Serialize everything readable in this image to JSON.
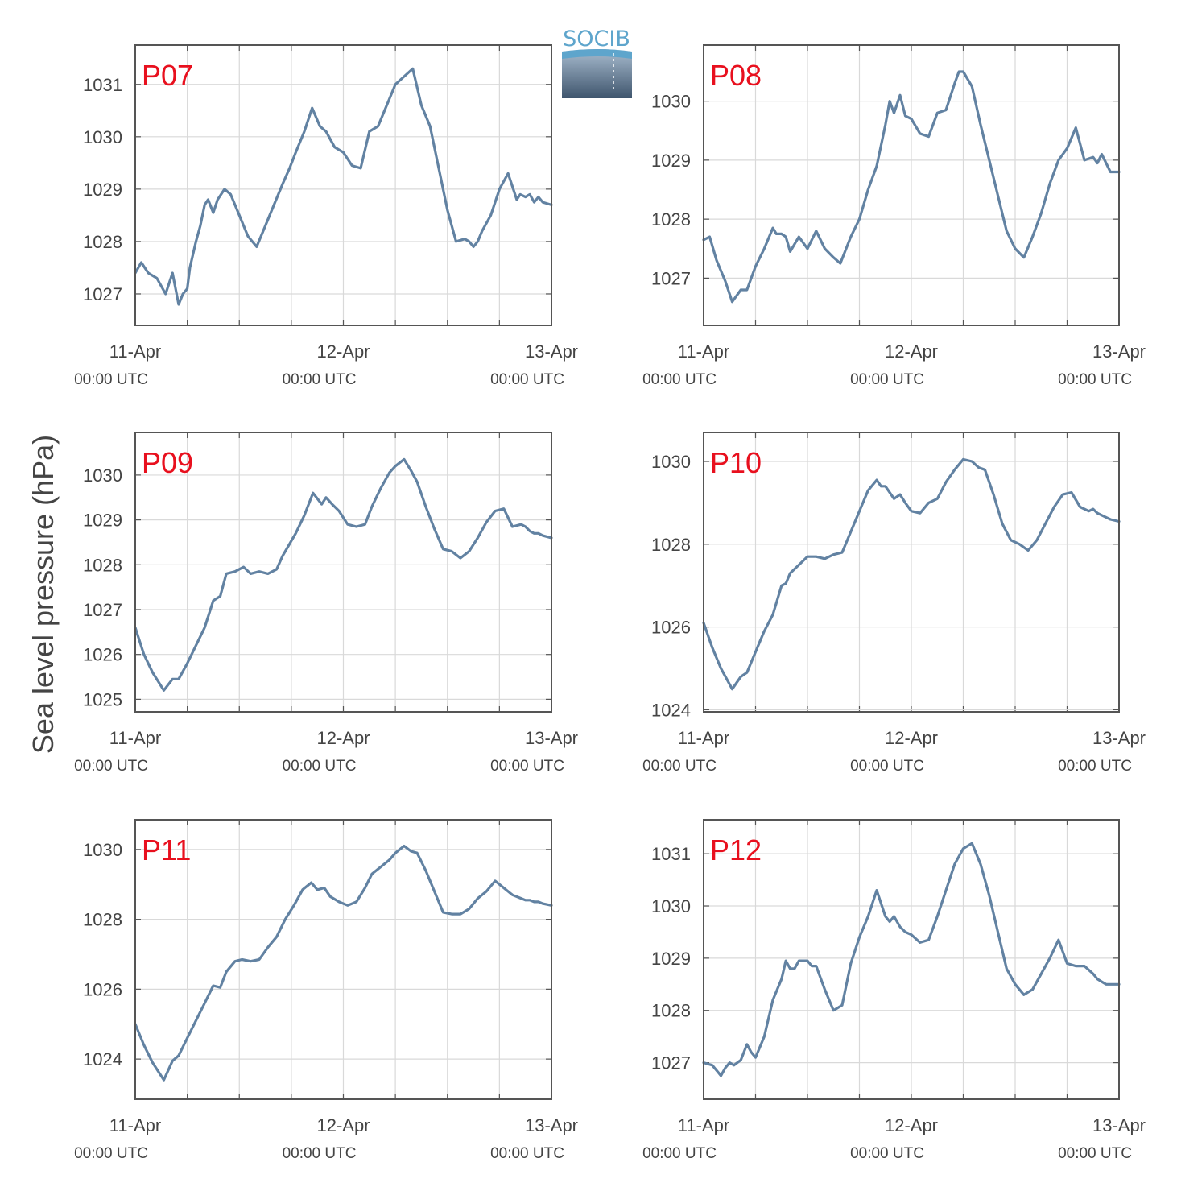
{
  "logo": {
    "text": "SOCIB"
  },
  "ylabel": "Sea level pressure (hPa)",
  "colors": {
    "line": "#6282a2",
    "label": "#e8101e",
    "grid": "#d9d9d9",
    "frame": "#555555",
    "text": "#444444"
  },
  "x_ticks": [
    {
      "x": 0,
      "date": "11-Apr",
      "time": "00:00 UTC"
    },
    {
      "x": 24,
      "date": "12-Apr",
      "time": "00:00 UTC"
    },
    {
      "x": 48,
      "date": "13-Apr",
      "time": "00:00 UTC"
    }
  ],
  "chart_data": [
    {
      "type": "line",
      "label": "P07",
      "xlim": [
        0,
        48
      ],
      "ylim": [
        1026.4,
        1031.75
      ],
      "yticks": [
        1027,
        1028,
        1029,
        1030,
        1031
      ],
      "x": [
        0,
        0.7,
        1.5,
        2.5,
        3.5,
        4.3,
        5,
        5.5,
        6,
        6.3,
        7,
        7.5,
        8,
        8.4,
        9,
        9.5,
        10.3,
        11,
        12,
        13,
        14,
        15,
        16,
        17,
        17.8,
        18.5,
        19.5,
        20.4,
        21.3,
        22,
        23,
        24,
        25,
        26,
        27,
        28,
        29,
        30,
        31,
        32,
        33,
        34,
        35,
        36,
        37,
        38,
        38.5,
        39,
        39.5,
        40,
        41,
        42,
        43,
        44,
        44.4,
        45,
        45.5,
        46,
        46.5,
        47,
        48
      ],
      "y": [
        1027.4,
        1027.6,
        1027.4,
        1027.3,
        1027.0,
        1027.4,
        1026.8,
        1027.0,
        1027.1,
        1027.5,
        1028.0,
        1028.3,
        1028.7,
        1028.8,
        1028.55,
        1028.8,
        1029.0,
        1028.9,
        1028.5,
        1028.1,
        1027.9,
        1028.3,
        1028.7,
        1029.1,
        1029.4,
        1029.7,
        1030.1,
        1030.55,
        1030.2,
        1030.1,
        1029.8,
        1029.7,
        1029.45,
        1029.4,
        1030.1,
        1030.2,
        1030.6,
        1031.0,
        1031.15,
        1031.3,
        1030.6,
        1030.2,
        1029.4,
        1028.6,
        1028.0,
        1028.05,
        1028.0,
        1027.9,
        1028.0,
        1028.2,
        1028.5,
        1029.0,
        1029.3,
        1028.8,
        1028.9,
        1028.85,
        1028.9,
        1028.75,
        1028.85,
        1028.75,
        1028.7
      ]
    },
    {
      "type": "line",
      "label": "P08",
      "xlim": [
        0,
        48
      ],
      "ylim": [
        1026.2,
        1030.95
      ],
      "yticks": [
        1027,
        1028,
        1029,
        1030
      ],
      "x": [
        0,
        0.7,
        1.5,
        2.5,
        3.3,
        4.3,
        5,
        6,
        7,
        8,
        8.4,
        9,
        9.5,
        10,
        11,
        12,
        13,
        14,
        15,
        15.8,
        17,
        18,
        19,
        20,
        21,
        21.5,
        22,
        22.7,
        23.3,
        24,
        25,
        26,
        27,
        28,
        29,
        29.5,
        30,
        31,
        32,
        33,
        34,
        35,
        36,
        37,
        38,
        39,
        40,
        41,
        42,
        43,
        44,
        45,
        45.5,
        46,
        46.5,
        47,
        48
      ],
      "y": [
        1027.65,
        1027.7,
        1027.3,
        1026.95,
        1026.6,
        1026.8,
        1026.8,
        1027.2,
        1027.5,
        1027.85,
        1027.75,
        1027.75,
        1027.7,
        1027.45,
        1027.7,
        1027.5,
        1027.8,
        1027.5,
        1027.35,
        1027.25,
        1027.7,
        1028.0,
        1028.5,
        1028.9,
        1029.6,
        1030.0,
        1029.8,
        1030.1,
        1029.75,
        1029.7,
        1029.45,
        1029.4,
        1029.8,
        1029.85,
        1030.3,
        1030.5,
        1030.5,
        1030.25,
        1029.6,
        1029.0,
        1028.4,
        1027.8,
        1027.5,
        1027.35,
        1027.7,
        1028.1,
        1028.6,
        1029.0,
        1029.2,
        1029.55,
        1029.0,
        1029.05,
        1028.95,
        1029.1,
        1028.95,
        1028.8,
        1028.8
      ]
    },
    {
      "type": "line",
      "label": "P09",
      "xlim": [
        0,
        48
      ],
      "ylim": [
        1024.72,
        1030.95
      ],
      "yticks": [
        1025,
        1026,
        1027,
        1028,
        1029,
        1030
      ],
      "x": [
        0,
        1,
        2,
        3.3,
        4.3,
        5,
        6,
        7,
        8,
        9,
        9.8,
        10.5,
        11.5,
        12.5,
        13.3,
        14.3,
        15.3,
        16.3,
        17,
        18.5,
        19.5,
        20.5,
        21.5,
        22,
        22.7,
        23.5,
        24.5,
        25.5,
        26.5,
        27.3,
        28.3,
        29.3,
        30,
        31,
        31.8,
        32.5,
        33.5,
        34.5,
        35.5,
        36.5,
        37.5,
        38.5,
        39.5,
        40.5,
        41.5,
        42.5,
        43.5,
        44.5,
        45,
        45.5,
        46,
        46.5,
        47,
        48
      ],
      "y": [
        1026.6,
        1026.0,
        1025.6,
        1025.2,
        1025.45,
        1025.45,
        1025.8,
        1026.2,
        1026.6,
        1027.2,
        1027.3,
        1027.8,
        1027.85,
        1027.95,
        1027.8,
        1027.85,
        1027.8,
        1027.9,
        1028.2,
        1028.7,
        1029.1,
        1029.6,
        1029.35,
        1029.5,
        1029.35,
        1029.2,
        1028.9,
        1028.85,
        1028.9,
        1029.3,
        1029.7,
        1030.05,
        1030.2,
        1030.35,
        1030.1,
        1029.85,
        1029.3,
        1028.8,
        1028.35,
        1028.3,
        1028.15,
        1028.3,
        1028.6,
        1028.95,
        1029.2,
        1029.25,
        1028.85,
        1028.9,
        1028.85,
        1028.75,
        1028.7,
        1028.7,
        1028.65,
        1028.6
      ]
    },
    {
      "type": "line",
      "label": "P10",
      "xlim": [
        0,
        48
      ],
      "ylim": [
        1023.95,
        1030.7
      ],
      "yticks": [
        1024,
        1026,
        1028,
        1030
      ],
      "x": [
        0,
        1,
        2,
        3.3,
        4.3,
        5,
        6,
        7,
        8,
        9,
        9.5,
        10,
        11,
        12,
        13,
        14,
        15,
        16,
        17,
        18,
        19,
        20,
        20.5,
        21,
        22,
        22.7,
        23.3,
        24,
        25,
        26,
        27,
        28,
        29,
        30,
        31,
        31.8,
        32.5,
        33.5,
        34.5,
        35.5,
        36.5,
        37.5,
        38.5,
        39.5,
        40.5,
        41.5,
        42.5,
        43.5,
        44.5,
        45,
        45.5,
        46,
        46.5,
        47,
        48
      ],
      "y": [
        1026.1,
        1025.5,
        1025.0,
        1024.5,
        1024.8,
        1024.9,
        1025.4,
        1025.9,
        1026.3,
        1027.0,
        1027.05,
        1027.3,
        1027.5,
        1027.7,
        1027.7,
        1027.65,
        1027.75,
        1027.8,
        1028.3,
        1028.8,
        1029.3,
        1029.55,
        1029.4,
        1029.4,
        1029.1,
        1029.2,
        1029.0,
        1028.8,
        1028.75,
        1029.0,
        1029.1,
        1029.5,
        1029.8,
        1030.05,
        1030.0,
        1029.85,
        1029.8,
        1029.2,
        1028.5,
        1028.1,
        1028.0,
        1027.85,
        1028.1,
        1028.5,
        1028.9,
        1029.2,
        1029.25,
        1028.9,
        1028.8,
        1028.85,
        1028.75,
        1028.7,
        1028.65,
        1028.6,
        1028.55
      ]
    },
    {
      "type": "line",
      "label": "P11",
      "xlim": [
        0,
        48
      ],
      "ylim": [
        1022.85,
        1030.85
      ],
      "yticks": [
        1024,
        1026,
        1028,
        1030
      ],
      "x": [
        0,
        1,
        2,
        3.3,
        4.3,
        5,
        6,
        7,
        8,
        9,
        9.8,
        10.5,
        11.5,
        12.3,
        13.3,
        14.3,
        15.3,
        16.3,
        17.3,
        18.3,
        19.3,
        20.3,
        21,
        21.8,
        22.5,
        23.5,
        24.5,
        25.5,
        26.5,
        27.3,
        28.3,
        29.3,
        30,
        31,
        31.8,
        32.5,
        33.5,
        34.5,
        35.5,
        36.5,
        37.5,
        38.5,
        39.5,
        40.5,
        41.5,
        42.5,
        43.5,
        44.5,
        45,
        45.5,
        46,
        46.5,
        47,
        48
      ],
      "y": [
        1025.0,
        1024.4,
        1023.9,
        1023.4,
        1023.95,
        1024.1,
        1024.6,
        1025.1,
        1025.6,
        1026.1,
        1026.05,
        1026.5,
        1026.8,
        1026.85,
        1026.8,
        1026.85,
        1027.2,
        1027.5,
        1028.0,
        1028.4,
        1028.85,
        1029.05,
        1028.85,
        1028.9,
        1028.65,
        1028.5,
        1028.4,
        1028.5,
        1028.9,
        1029.3,
        1029.5,
        1029.7,
        1029.9,
        1030.1,
        1029.95,
        1029.9,
        1029.4,
        1028.8,
        1028.2,
        1028.15,
        1028.15,
        1028.3,
        1028.6,
        1028.8,
        1029.1,
        1028.9,
        1028.7,
        1028.6,
        1028.55,
        1028.55,
        1028.5,
        1028.5,
        1028.45,
        1028.4
      ]
    },
    {
      "type": "line",
      "label": "P12",
      "xlim": [
        0,
        48
      ],
      "ylim": [
        1026.3,
        1031.65
      ],
      "yticks": [
        1027,
        1028,
        1029,
        1030,
        1031
      ],
      "x": [
        0,
        1,
        2,
        2.5,
        3,
        3.5,
        4.3,
        5,
        5.5,
        6,
        7,
        8,
        9,
        9.5,
        10,
        10.5,
        11,
        12,
        12.5,
        13,
        14,
        15,
        16,
        17,
        18,
        19,
        20,
        21,
        21.5,
        22,
        22.7,
        23.3,
        24,
        25,
        26,
        27,
        28,
        29,
        30,
        31,
        32,
        33,
        34,
        35,
        36,
        37,
        38,
        39,
        40,
        41,
        42,
        43,
        44,
        45,
        45.5,
        46,
        46.5,
        47,
        48
      ],
      "y": [
        1027.0,
        1026.95,
        1026.75,
        1026.9,
        1027.0,
        1026.95,
        1027.05,
        1027.35,
        1027.2,
        1027.1,
        1027.5,
        1028.2,
        1028.6,
        1028.95,
        1028.8,
        1028.8,
        1028.95,
        1028.95,
        1028.85,
        1028.85,
        1028.4,
        1028.0,
        1028.1,
        1028.9,
        1029.4,
        1029.8,
        1030.3,
        1029.8,
        1029.7,
        1029.8,
        1029.6,
        1029.5,
        1029.45,
        1029.3,
        1029.35,
        1029.8,
        1030.3,
        1030.8,
        1031.1,
        1031.2,
        1030.8,
        1030.2,
        1029.5,
        1028.8,
        1028.5,
        1028.3,
        1028.4,
        1028.7,
        1029.0,
        1029.35,
        1028.9,
        1028.85,
        1028.85,
        1028.7,
        1028.6,
        1028.55,
        1028.5,
        1028.5,
        1028.5
      ]
    }
  ]
}
